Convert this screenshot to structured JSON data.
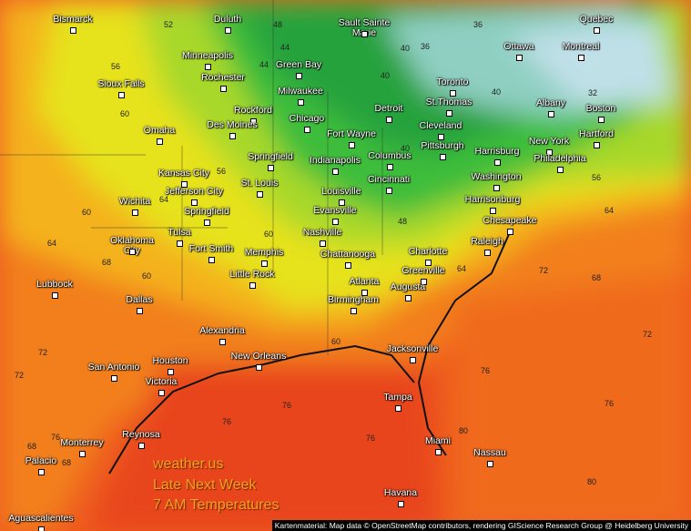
{
  "map": {
    "cities": [
      "Bismarck",
      "Duluth",
      "Sault Sainte\nMarie",
      "Quebec",
      "Minneapolis",
      "Green Bay",
      "Ottawa",
      "Montreal",
      "Sioux Falls",
      "Rochester",
      "Milwaukee",
      "Toronto",
      "St.Thomas",
      "Albany",
      "Boston",
      "Rockford",
      "Chicago",
      "Detroit",
      "Des Moines",
      "Omaha",
      "Cleveland",
      "Fort Wayne",
      "Hartford",
      "New York",
      "Pittsburgh",
      "Harrisburg",
      "Springfield",
      "Indianapolis",
      "Columbus",
      "Philadelphia",
      "Kansas City",
      "St. Louis",
      "Cincinnati",
      "Washington",
      "Jefferson City",
      "Louisville",
      "Wichita",
      "Harrisonburg",
      "Springfield",
      "Evansville",
      "Chesapeake",
      "Oklahoma\nCity",
      "Tulsa",
      "Nashville",
      "Raleigh",
      "Fort Smith",
      "Memphis",
      "Chattanooga",
      "Charlotte",
      "Greenville",
      "Lubbock",
      "Little Rock",
      "Atlanta",
      "Augusta",
      "Dallas",
      "Birmingham",
      "Alexandria",
      "Jacksonville",
      "New Orleans",
      "Houston",
      "San Antonio",
      "Victoria",
      "Tampa",
      "Reynosa",
      "Miami",
      "Monterrey",
      "Nassau",
      "Palacio",
      "Havana",
      "Aguascalientes"
    ],
    "contour_labels": [
      52,
      48,
      44,
      36,
      56,
      44,
      40,
      36,
      60,
      40,
      40,
      32,
      60,
      40,
      56,
      60,
      56,
      64,
      48,
      64,
      60,
      68,
      64,
      72,
      64,
      68,
      60,
      72,
      72,
      68,
      76,
      76,
      76,
      76,
      76,
      80,
      80,
      72,
      76,
      68
    ],
    "overlay": {
      "brand": "weather.us",
      "line1": "Late Next Week",
      "line2": "7 AM Temperatures"
    },
    "attribution": "Kartenmaterial: Map data © OpenStreetMap contributors, rendering GIScience Research Group @ Heidelberg University"
  }
}
